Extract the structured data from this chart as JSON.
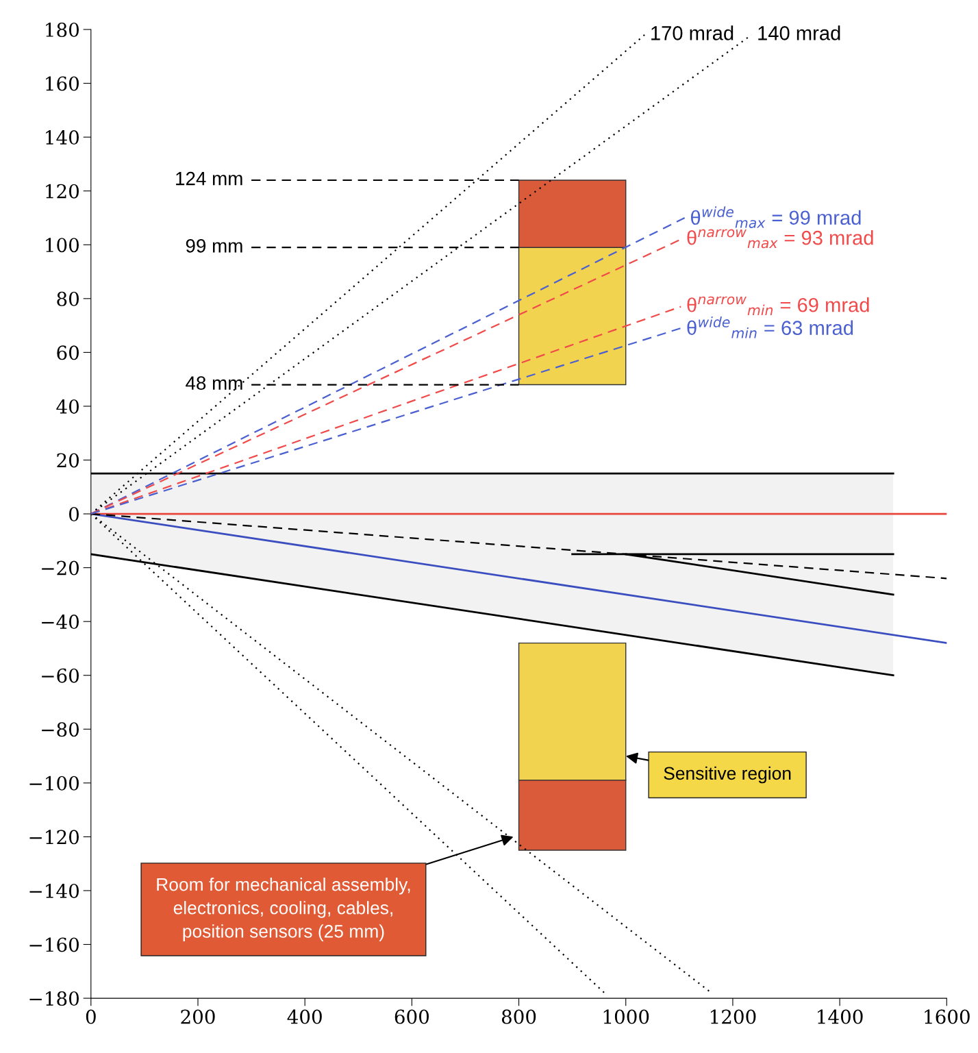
{
  "chart_data": {
    "type": "line",
    "xlim": [
      0,
      1600
    ],
    "ylim": [
      -180,
      180
    ],
    "xticks": [
      0,
      200,
      400,
      600,
      800,
      1000,
      1200,
      1400,
      1600
    ],
    "yticks": [
      {
        "value": -180,
        "label": "−180"
      },
      {
        "value": -160,
        "label": "−160"
      },
      {
        "value": -140,
        "label": "−140"
      },
      {
        "value": -120,
        "label": "−120"
      },
      {
        "value": -100,
        "label": "−100"
      },
      {
        "value": -80,
        "label": "−80"
      },
      {
        "value": -60,
        "label": "−60"
      },
      {
        "value": -40,
        "label": "−40"
      },
      {
        "value": -20,
        "label": "−20"
      },
      0,
      20,
      40,
      60,
      80,
      100,
      120,
      140,
      160,
      180
    ],
    "grid": false,
    "legend": false,
    "series": [
      {
        "type": "bar",
        "x": [
          900
        ],
        "base": [
          48
        ],
        "values": [
          51
        ],
        "color": "#f2d350"
      },
      {
        "type": "bar",
        "x": [
          900
        ],
        "base": [
          99
        ],
        "values": [
          25
        ],
        "color": "#d95b3a"
      },
      {
        "type": "bar",
        "x": [
          900
        ],
        "base": [
          -99
        ],
        "values": [
          51
        ],
        "color": "#f2d350"
      },
      {
        "type": "bar",
        "x": [
          900
        ],
        "base": [
          -125
        ],
        "values": [
          26
        ],
        "color": "#d95b3a"
      },
      {
        "x": [
          0,
          1500
        ],
        "values": [
          15,
          15
        ],
        "color": "#000000",
        "line_style": "solid"
      },
      {
        "x": [
          0,
          1500
        ],
        "values": [
          -15,
          -60
        ],
        "lower": [
          -15,
          -60
        ],
        "upper": [
          15,
          15
        ],
        "color": "#000000",
        "line_style": "solid"
      },
      {
        "x": [
          900,
          1500
        ],
        "values": [
          -15,
          -15
        ],
        "color": "#000000",
        "line_style": "solid"
      },
      {
        "x": [
          1000,
          1500
        ],
        "values": [
          -15,
          -30
        ],
        "color": "#000000",
        "line_style": "solid"
      },
      {
        "x": [
          0,
          1600
        ],
        "values": [
          0,
          0
        ],
        "color": "#e8453c",
        "line_style": "solid"
      },
      {
        "x": [
          0,
          1600
        ],
        "values": [
          0,
          -48
        ],
        "color": "#3a4ec0",
        "line_style": "solid"
      },
      {
        "x": [
          0,
          1600
        ],
        "values": [
          0,
          -24
        ],
        "color": "#000000",
        "line_style": "dashed"
      },
      {
        "name": "170 mrad",
        "x": [
          0,
          1035
        ],
        "values": [
          0,
          178
        ],
        "color": "#000000",
        "line_style": "dotted"
      },
      {
        "name": "140 mrad",
        "x": [
          0,
          1235
        ],
        "values": [
          0,
          178
        ],
        "color": "#000000",
        "line_style": "dotted"
      },
      {
        "x": [
          0,
          960
        ],
        "values": [
          0,
          -178
        ],
        "color": "#000000",
        "line_style": "dotted"
      },
      {
        "x": [
          0,
          1160
        ],
        "values": [
          0,
          -178
        ],
        "color": "#000000",
        "line_style": "dotted"
      },
      {
        "name": "θ$^{wide}$$_{max}$ = 99 mrad",
        "x": [
          0,
          1110
        ],
        "values": [
          0,
          110
        ],
        "color": "#4a5fd0",
        "line_style": "dashed"
      },
      {
        "name": "θ$^{narrow}$$_{max}$ = 93 mrad",
        "x": [
          0,
          1103
        ],
        "values": [
          0,
          102
        ],
        "color": "#f04a4a",
        "line_style": "dashed"
      },
      {
        "name": "θ$^{narrow}$$_{min}$ = 69 mrad",
        "x": [
          0,
          1103
        ],
        "values": [
          0,
          77
        ],
        "color": "#f04a4a",
        "line_style": "dashed"
      },
      {
        "name": "θ$^{wide}$$_{min}$ = 63 mrad",
        "x": [
          0,
          1103
        ],
        "values": [
          0,
          69
        ],
        "color": "#4a5fd0",
        "line_style": "dashed"
      },
      {
        "name": "124 mm",
        "x": [
          300,
          800
        ],
        "values": [
          124,
          124
        ],
        "color": "#000000",
        "line_style": "dashed"
      },
      {
        "name": "99 mm",
        "x": [
          300,
          800
        ],
        "values": [
          99,
          99
        ],
        "color": "#000000",
        "line_style": "dashed"
      },
      {
        "name": "48 mm",
        "x": [
          300,
          800
        ],
        "values": [
          48,
          48
        ],
        "color": "#000000",
        "line_style": "dashed"
      }
    ],
    "annotations": [
      {
        "text": "Sensitive region",
        "x": 1000,
        "y": -90
      },
      {
        "text": "Room for mechanical assembly,\nelectronics, cooling, cables,\nposition sensors (25 mm)",
        "x": 790,
        "y": -120
      }
    ]
  }
}
